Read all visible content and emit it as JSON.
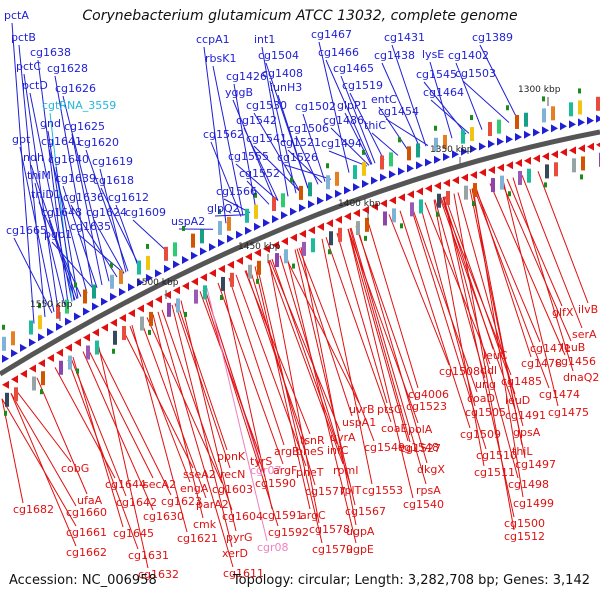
{
  "title": "Corynebacterium glutamicum ATCC 13032, complete genome",
  "footer": {
    "accession": "Accession: NC_006958",
    "summary": "Topology: circular; Length: 3,282,708 bp; Genes: 3,142"
  },
  "colors": {
    "forward_strand": "#1f1fd6",
    "reverse_strand": "#e01010",
    "rna_forward": "#22b8d8",
    "rna_reverse": "#f080c0",
    "backbone": "#555555",
    "gc_dot": "#1a8c1a"
  },
  "scale_ticks": [
    "1300 kbp",
    "1350 kbp",
    "1400 kbp",
    "1450 kbp",
    "1500 kbp",
    "1550 kbp"
  ],
  "forward_labels": [
    "pctA",
    "pctB",
    "cg1638",
    "pctC",
    "cg1628",
    "pctD",
    "cg1626",
    "cgtRNA_3559",
    "gnd",
    "cg1625",
    "gpt",
    "cg1641",
    "cg1620",
    "ndh",
    "cg1640",
    "cg1619",
    "thiM",
    "cg1639",
    "cg1618",
    "thiD1",
    "cg1636",
    "cg1612",
    "cg1648",
    "cg1624",
    "cg1609",
    "cg1665",
    "pgp1",
    "cg1635",
    "ccpA1",
    "int1",
    "cg1467",
    "cg1431",
    "cg1389",
    "cg1504",
    "cg1466",
    "lysE",
    "cg1402",
    "rbsK1",
    "cg1465",
    "cg1438",
    "cg1545",
    "cg1503",
    "cg1426",
    "cg1408",
    "iunH3",
    "cg1519",
    "cg1464",
    "yggB",
    "cg1530",
    "cg1502",
    "glpP1",
    "entC",
    "cg1542",
    "cg1486",
    "cg1454",
    "cg1541",
    "cg1506",
    "thiC",
    "cg1562",
    "cg1521",
    "cg1494",
    "cg1555",
    "cg1526",
    "cg1552",
    "cg1566",
    "glpQ2",
    "uspA2"
  ],
  "reverse_labels": [
    "ilvB",
    "glfX",
    "serA",
    "cg1471",
    "leuB",
    "cg1456",
    "leuC",
    "cg1478",
    "dnaQ2",
    "ddl",
    "cg1485",
    "cg1474",
    "ung",
    "cg1475",
    "cg1508",
    "coaD",
    "leuD",
    "cg1491",
    "cg4006",
    "cg1505",
    "cg1523",
    "gpsA",
    "cg1509",
    "uvrB",
    "ptsG",
    "uspA1",
    "cg1548",
    "coaE",
    "polA",
    "cg1510",
    "thiL",
    "cg1497",
    "cg1527",
    "tsnR",
    "uvrA",
    "cg1549",
    "cg1511",
    "argB",
    "pheS",
    "infC",
    "dkgX",
    "cg1498",
    "ppnK",
    "cgr07",
    "tyrS",
    "argF",
    "pheT",
    "rpmI",
    "cg1553",
    "recN",
    "cg1590",
    "cg1577",
    "rplT",
    "rpsA",
    "cg1499",
    "cobG",
    "cg1644",
    "secA2",
    "sseA2",
    "cg1603",
    "cg1591",
    "argC",
    "cg1567",
    "cg1540",
    "cg1500",
    "cg1682",
    "ufaA",
    "cg1642",
    "engA",
    "parA2",
    "cg1604",
    "cg1592",
    "cg1578",
    "ugpA",
    "cg1512",
    "cg1660",
    "cg1630",
    "cg1623",
    "cmk",
    "pyrG",
    "cgr08",
    "cg1579",
    "ugpE",
    "cg1661",
    "cg1645",
    "cg1621",
    "xerD",
    "cg1662",
    "cg1631",
    "cg1611",
    "cg1632"
  ]
}
